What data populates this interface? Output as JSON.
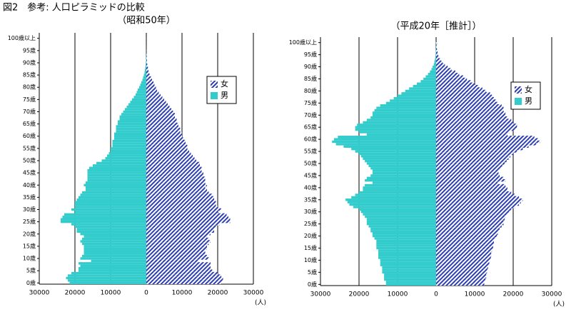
{
  "title": "図2　参考: 人口ピラミッドの比較",
  "chart_data": [
    {
      "type": "pyramid",
      "title": "（昭和50年）",
      "xlabel": "(人)",
      "categories": [
        "0歳",
        null,
        null,
        null,
        null,
        "5歳",
        null,
        null,
        null,
        null,
        "10歳",
        null,
        null,
        null,
        null,
        "15歳",
        null,
        null,
        null,
        null,
        "20歳",
        null,
        null,
        null,
        null,
        "25歳",
        null,
        null,
        null,
        null,
        "30歳",
        null,
        null,
        null,
        null,
        "35歳",
        null,
        null,
        null,
        null,
        "40歳",
        null,
        null,
        null,
        null,
        "45歳",
        null,
        null,
        null,
        null,
        "50歳",
        null,
        null,
        null,
        null,
        "55歳",
        null,
        null,
        null,
        null,
        "60歳",
        null,
        null,
        null,
        null,
        "65歳",
        null,
        null,
        null,
        null,
        "70歳",
        null,
        null,
        null,
        null,
        "75歳",
        null,
        null,
        null,
        null,
        "80歳",
        null,
        null,
        null,
        null,
        "85歳",
        null,
        null,
        null,
        null,
        "90歳",
        null,
        null,
        null,
        null,
        "95歳",
        null,
        null,
        null,
        null,
        "100歳以上"
      ],
      "xlim": [
        -30000,
        30000
      ],
      "xticks": [
        {
          "value": -30000,
          "label": "30000"
        },
        {
          "value": -20000,
          "label": "20000"
        },
        {
          "value": -10000,
          "label": "10000"
        },
        0,
        10000,
        20000,
        30000
      ],
      "grid": true,
      "legend": "upper right",
      "series": [
        {
          "name": "女",
          "color": "#2b3cb3",
          "pattern": "hatch",
          "side": "right",
          "values": [
            21000,
            21500,
            21500,
            21000,
            20000,
            18500,
            18000,
            18000,
            18000,
            14500,
            17500,
            17000,
            16500,
            16500,
            17000,
            17000,
            17500,
            18000,
            17500,
            17000,
            18000,
            19000,
            19000,
            19500,
            20500,
            23500,
            23500,
            23000,
            22500,
            20000,
            21000,
            20000,
            19500,
            19500,
            19000,
            19000,
            18500,
            17500,
            17000,
            16500,
            17000,
            16500,
            16500,
            16500,
            16000,
            16000,
            15500,
            15500,
            15000,
            15000,
            14000,
            13500,
            13000,
            12500,
            12000,
            11500,
            11500,
            11000,
            11000,
            10500,
            10000,
            10000,
            9500,
            9500,
            9000,
            9000,
            8500,
            8500,
            8000,
            8000,
            7500,
            7000,
            6500,
            6000,
            5500,
            5000,
            4500,
            4000,
            3500,
            3000,
            2700,
            2300,
            2000,
            1600,
            1300,
            1000,
            800,
            600,
            450,
            300,
            220,
            160,
            110,
            80,
            50,
            30,
            20,
            12,
            8,
            5,
            10
          ]
        },
        {
          "name": "男",
          "color": "#33cccc",
          "pattern": "solid",
          "side": "left",
          "values": [
            21500,
            22000,
            22500,
            22000,
            21000,
            19000,
            19000,
            18500,
            19000,
            15500,
            18500,
            18000,
            17500,
            17500,
            17500,
            17500,
            18000,
            18500,
            18000,
            17500,
            18500,
            19500,
            19500,
            20000,
            21000,
            24000,
            24000,
            23500,
            23000,
            20000,
            21000,
            20000,
            20000,
            20000,
            19500,
            19000,
            18500,
            18000,
            17000,
            17000,
            17500,
            17000,
            16500,
            16500,
            16500,
            16500,
            16500,
            16000,
            15000,
            14000,
            12500,
            11500,
            11000,
            10500,
            10000,
            10000,
            9500,
            9500,
            9500,
            9000,
            9000,
            9000,
            8500,
            8500,
            8500,
            8000,
            8000,
            7500,
            7500,
            7000,
            6500,
            6000,
            5500,
            5000,
            4500,
            4000,
            3500,
            3000,
            2700,
            2400,
            2000,
            1700,
            1400,
            1100,
            900,
            700,
            500,
            400,
            300,
            200,
            150,
            100,
            70,
            50,
            30,
            20,
            15,
            10,
            5,
            3,
            5
          ]
        }
      ]
    },
    {
      "type": "pyramid",
      "title": "（平成20年［推計］）",
      "xlabel": "(人)",
      "categories": [
        "0歳",
        null,
        null,
        null,
        null,
        "5歳",
        null,
        null,
        null,
        null,
        "10歳",
        null,
        null,
        null,
        null,
        "15歳",
        null,
        null,
        null,
        null,
        "20歳",
        null,
        null,
        null,
        null,
        "25歳",
        null,
        null,
        null,
        null,
        "30歳",
        null,
        null,
        null,
        null,
        "35歳",
        null,
        null,
        null,
        null,
        "40歳",
        null,
        null,
        null,
        null,
        "45歳",
        null,
        null,
        null,
        null,
        "50歳",
        null,
        null,
        null,
        null,
        "55歳",
        null,
        null,
        null,
        null,
        "60歳",
        null,
        null,
        null,
        null,
        "65歳",
        null,
        null,
        null,
        null,
        "70歳",
        null,
        null,
        null,
        null,
        "75歳",
        null,
        null,
        null,
        null,
        "80歳",
        null,
        null,
        null,
        null,
        "85歳",
        null,
        null,
        null,
        null,
        "90歳",
        null,
        null,
        null,
        null,
        "95歳",
        null,
        null,
        null,
        null,
        "100歳以上"
      ],
      "xlim": [
        -30000,
        30000
      ],
      "xticks": [
        {
          "value": -30000,
          "label": "30000"
        },
        {
          "value": -20000,
          "label": "20000"
        },
        {
          "value": -10000,
          "label": "10000"
        },
        0,
        10000,
        20000,
        30000
      ],
      "grid": true,
      "legend": "upper right",
      "series": [
        {
          "name": "女",
          "color": "#2b3cb3",
          "pattern": "hatch",
          "side": "right",
          "values": [
            12500,
            12500,
            12800,
            13000,
            13000,
            13200,
            13300,
            13500,
            13800,
            13800,
            14000,
            14200,
            14300,
            14300,
            14500,
            14800,
            14800,
            15000,
            15000,
            15300,
            15800,
            16000,
            16300,
            16500,
            17000,
            17500,
            17500,
            17800,
            18000,
            18500,
            19000,
            19500,
            20500,
            21500,
            22000,
            22500,
            21500,
            20500,
            19500,
            18500,
            18500,
            18000,
            16000,
            18000,
            17500,
            16500,
            16200,
            16200,
            16800,
            17200,
            17800,
            18300,
            18800,
            19300,
            20000,
            21000,
            22500,
            24000,
            26000,
            27000,
            26500,
            25500,
            18500,
            19000,
            20500,
            21000,
            21000,
            20000,
            19500,
            18500,
            18000,
            18000,
            17500,
            17500,
            17000,
            16000,
            15500,
            15000,
            14500,
            14000,
            13000,
            12000,
            11000,
            10000,
            9000,
            8000,
            7000,
            6000,
            5000,
            4000,
            3000,
            2300,
            1700,
            1200,
            800,
            550,
            380,
            260,
            180,
            120,
            300
          ]
        },
        {
          "name": "男",
          "color": "#33cccc",
          "pattern": "solid",
          "side": "left",
          "values": [
            13000,
            13000,
            13500,
            13500,
            13500,
            14000,
            14000,
            14000,
            14500,
            14500,
            14500,
            15000,
            15000,
            15000,
            15000,
            15500,
            15500,
            15500,
            15500,
            16000,
            16500,
            16500,
            17000,
            17000,
            17500,
            18000,
            18000,
            18000,
            18500,
            19000,
            19500,
            20000,
            21500,
            22500,
            23000,
            23500,
            22000,
            21000,
            20000,
            19000,
            19000,
            18500,
            16500,
            18500,
            18000,
            17000,
            16500,
            16500,
            17000,
            17500,
            18000,
            18500,
            19000,
            19500,
            20000,
            21000,
            22000,
            24000,
            26000,
            27000,
            26500,
            25500,
            18000,
            20000,
            21000,
            21000,
            20500,
            19000,
            18000,
            17000,
            16500,
            16500,
            16000,
            15500,
            14500,
            13000,
            12000,
            11000,
            10000,
            9000,
            8000,
            7000,
            6000,
            5000,
            4000,
            3300,
            2700,
            2100,
            1600,
            1200,
            900,
            600,
            450,
            300,
            200,
            140,
            90,
            60,
            40,
            25,
            50
          ]
        }
      ]
    }
  ]
}
